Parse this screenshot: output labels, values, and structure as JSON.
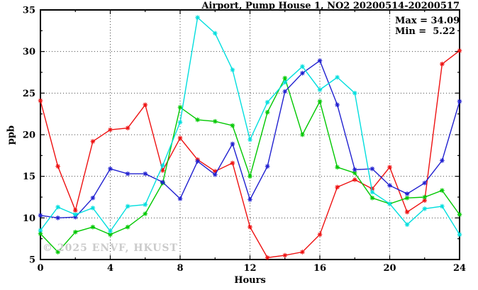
{
  "figure": {
    "title": "Airport, Pump House 1, NO2 20200514-20200517",
    "annotation": {
      "max_label": "Max = 34.09",
      "min_label": "Min =  5.22"
    },
    "watermark": "© 2025 ENVF, HKUST",
    "xlabel": "Hours",
    "ylabel": "ppb"
  },
  "chart_data": {
    "type": "line",
    "title": "Airport, Pump House 1, NO2 20200514-20200517",
    "xlabel": "Hours",
    "ylabel": "ppb",
    "xlim": [
      0,
      24
    ],
    "ylim": [
      5,
      35
    ],
    "xticks": [
      0,
      4,
      8,
      12,
      16,
      20,
      24
    ],
    "yticks": [
      5,
      10,
      15,
      20,
      25,
      30,
      35
    ],
    "minor_xtick_step": 2,
    "minor_ytick_step": 2.5,
    "grid": true,
    "legend_position": "none",
    "max_value": 34.09,
    "min_value": 5.22,
    "x": [
      0,
      1,
      2,
      3,
      4,
      5,
      6,
      7,
      8,
      9,
      10,
      11,
      12,
      13,
      14,
      15,
      16,
      17,
      18,
      19,
      20,
      21,
      22,
      23,
      24
    ],
    "series": [
      {
        "name": "series-red",
        "color": "#ee1111",
        "marker": "star",
        "values": [
          24.1,
          16.2,
          10.9,
          19.2,
          20.6,
          20.8,
          23.6,
          15.7,
          19.6,
          17.0,
          15.6,
          16.6,
          8.9,
          5.22,
          5.5,
          5.9,
          8.0,
          13.7,
          14.6,
          13.5,
          16.1,
          10.7,
          12.1,
          28.5,
          30.1
        ]
      },
      {
        "name": "series-green",
        "color": "#00c800",
        "marker": "star",
        "values": [
          8.1,
          5.9,
          8.3,
          8.9,
          8.0,
          8.9,
          10.5,
          14.2,
          23.3,
          21.8,
          21.6,
          21.1,
          15.0,
          22.7,
          26.8,
          20.0,
          24.0,
          16.1,
          15.4,
          12.4,
          11.7,
          12.4,
          12.5,
          13.3,
          10.4
        ]
      },
      {
        "name": "series-blue",
        "color": "#2020d0",
        "marker": "star",
        "values": [
          10.3,
          10.0,
          10.1,
          12.4,
          15.9,
          15.3,
          15.3,
          14.3,
          12.3,
          16.8,
          15.2,
          18.9,
          12.2,
          16.2,
          25.2,
          27.4,
          28.9,
          23.6,
          15.8,
          15.9,
          13.9,
          12.9,
          14.2,
          16.9,
          24.0
        ]
      },
      {
        "name": "series-cyan",
        "color": "#00dede",
        "marker": "star",
        "values": [
          8.5,
          11.3,
          10.4,
          11.2,
          8.4,
          11.4,
          11.6,
          16.3,
          21.5,
          34.09,
          32.2,
          27.8,
          19.4,
          23.9,
          26.3,
          28.2,
          25.4,
          26.9,
          25.0,
          13.1,
          11.7,
          9.2,
          11.1,
          11.4,
          8.0
        ]
      }
    ]
  }
}
